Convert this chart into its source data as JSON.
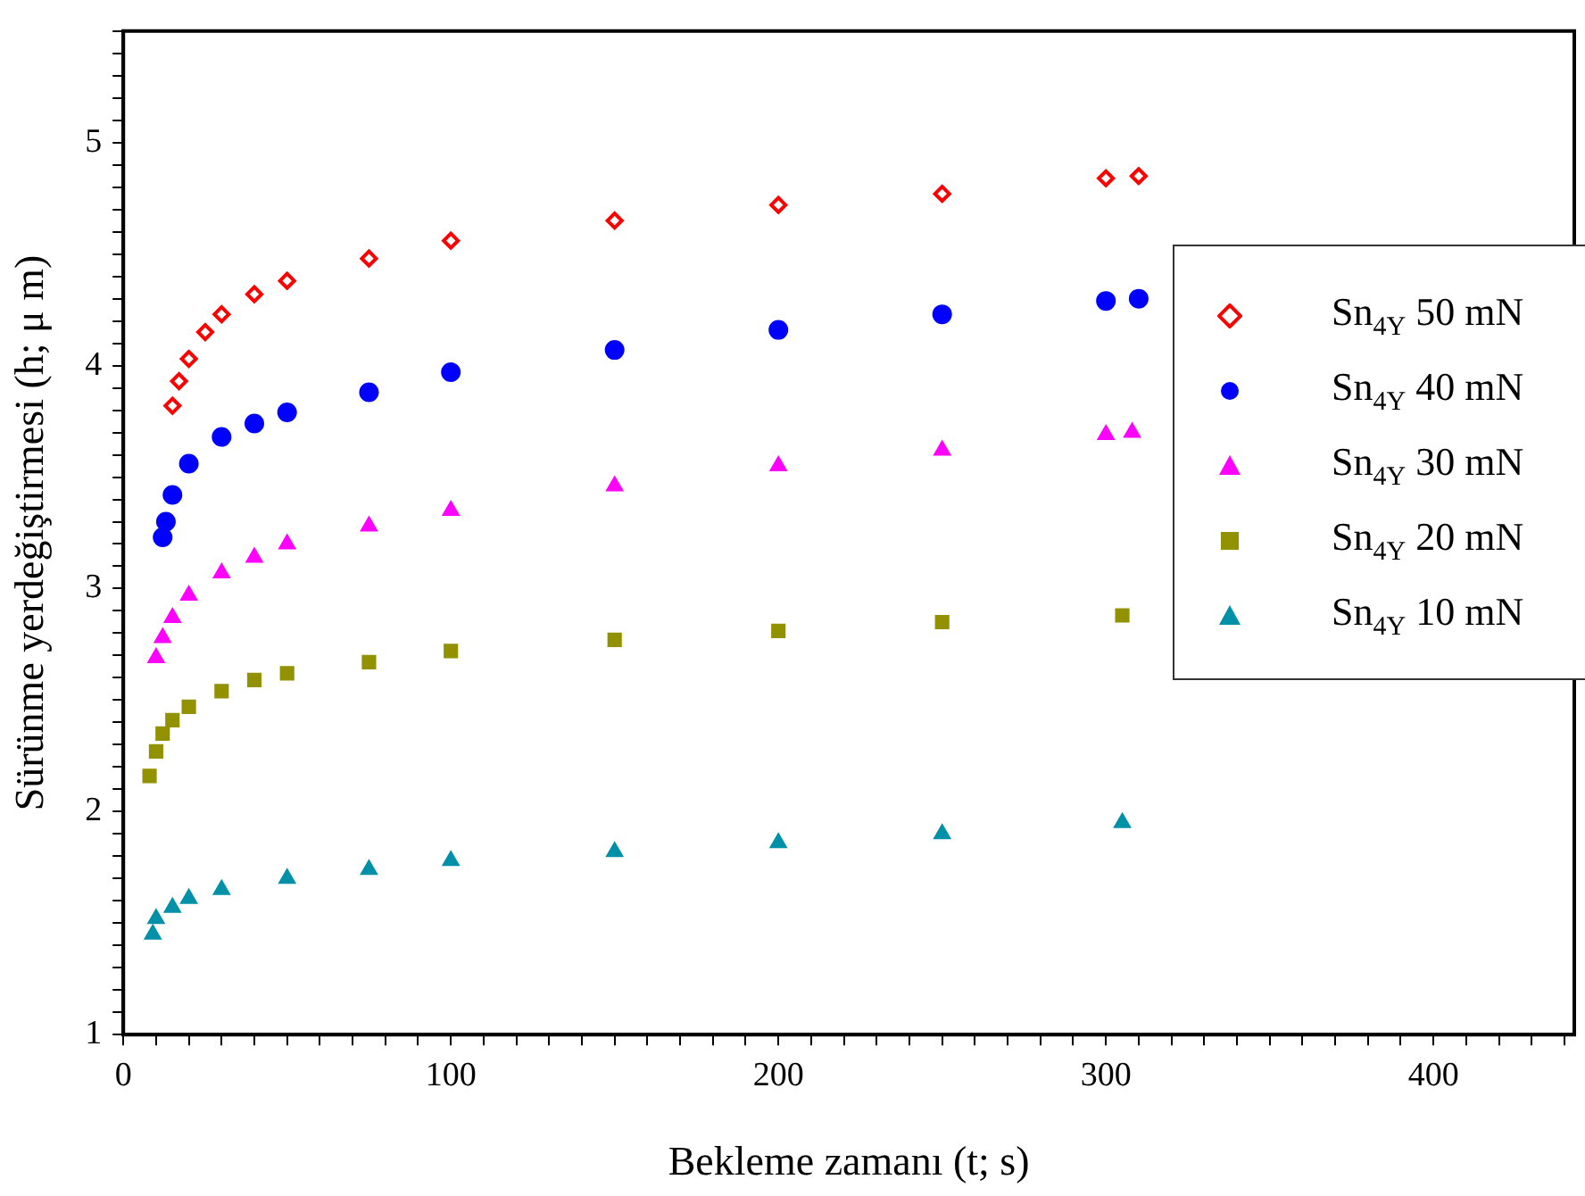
{
  "chart_data": {
    "type": "scatter",
    "xlabel": "Bekleme zamanı (t; s)",
    "ylabel": "Sürünme yerdeğiştirmesi (h; μ m)",
    "legend": "right",
    "grid": false,
    "xlim": [
      0,
      443
    ],
    "ylim": [
      1,
      5.5
    ],
    "xticks": [
      0,
      {
        "value": 10,
        "label": null
      },
      {
        "value": 20,
        "label": null
      },
      {
        "value": 30,
        "label": null
      },
      {
        "value": 40,
        "label": null
      },
      {
        "value": 50,
        "label": null
      },
      {
        "value": 60,
        "label": null
      },
      {
        "value": 70,
        "label": null
      },
      {
        "value": 80,
        "label": null
      },
      {
        "value": 90,
        "label": null
      },
      100,
      {
        "value": 110,
        "label": null
      },
      {
        "value": 120,
        "label": null
      },
      {
        "value": 130,
        "label": null
      },
      {
        "value": 140,
        "label": null
      },
      {
        "value": 150,
        "label": null
      },
      {
        "value": 160,
        "label": null
      },
      {
        "value": 170,
        "label": null
      },
      {
        "value": 180,
        "label": null
      },
      {
        "value": 190,
        "label": null
      },
      200,
      {
        "value": 210,
        "label": null
      },
      {
        "value": 220,
        "label": null
      },
      {
        "value": 230,
        "label": null
      },
      {
        "value": 240,
        "label": null
      },
      {
        "value": 250,
        "label": null
      },
      {
        "value": 260,
        "label": null
      },
      {
        "value": 270,
        "label": null
      },
      {
        "value": 280,
        "label": null
      },
      {
        "value": 290,
        "label": null
      },
      300,
      {
        "value": 310,
        "label": null
      },
      {
        "value": 320,
        "label": null
      },
      {
        "value": 330,
        "label": null
      },
      {
        "value": 340,
        "label": null
      },
      {
        "value": 350,
        "label": null
      },
      {
        "value": 360,
        "label": null
      },
      {
        "value": 370,
        "label": null
      },
      {
        "value": 380,
        "label": null
      },
      {
        "value": 390,
        "label": null
      },
      400,
      {
        "value": 410,
        "label": null
      },
      {
        "value": 420,
        "label": null
      },
      {
        "value": 430,
        "label": null
      },
      {
        "value": 440,
        "label": null
      }
    ],
    "yticks": [
      1,
      {
        "value": 1.1,
        "label": null
      },
      {
        "value": 1.2,
        "label": null
      },
      {
        "value": 1.3,
        "label": null
      },
      {
        "value": 1.4,
        "label": null
      },
      {
        "value": 1.5,
        "label": null
      },
      {
        "value": 1.6,
        "label": null
      },
      {
        "value": 1.7,
        "label": null
      },
      {
        "value": 1.8,
        "label": null
      },
      {
        "value": 1.9,
        "label": null
      },
      2,
      {
        "value": 2.1,
        "label": null
      },
      {
        "value": 2.2,
        "label": null
      },
      {
        "value": 2.3,
        "label": null
      },
      {
        "value": 2.4,
        "label": null
      },
      {
        "value": 2.5,
        "label": null
      },
      {
        "value": 2.6,
        "label": null
      },
      {
        "value": 2.7,
        "label": null
      },
      {
        "value": 2.8,
        "label": null
      },
      {
        "value": 2.9,
        "label": null
      },
      3,
      {
        "value": 3.1,
        "label": null
      },
      {
        "value": 3.2,
        "label": null
      },
      {
        "value": 3.3,
        "label": null
      },
      {
        "value": 3.4,
        "label": null
      },
      {
        "value": 3.5,
        "label": null
      },
      {
        "value": 3.6,
        "label": null
      },
      {
        "value": 3.7,
        "label": null
      },
      {
        "value": 3.8,
        "label": null
      },
      {
        "value": 3.9,
        "label": null
      },
      4,
      {
        "value": 4.1,
        "label": null
      },
      {
        "value": 4.2,
        "label": null
      },
      {
        "value": 4.3,
        "label": null
      },
      {
        "value": 4.4,
        "label": null
      },
      {
        "value": 4.5,
        "label": null
      },
      {
        "value": 4.6,
        "label": null
      },
      {
        "value": 4.7,
        "label": null
      },
      {
        "value": 4.8,
        "label": null
      },
      {
        "value": 4.9,
        "label": null
      },
      5,
      {
        "value": 5.1,
        "label": null
      },
      {
        "value": 5.2,
        "label": null
      },
      {
        "value": 5.3,
        "label": null
      },
      {
        "value": 5.4,
        "label": null
      },
      {
        "value": 5.5,
        "label": null
      }
    ],
    "series": [
      {
        "name": "Sn$_{4Y}$ 50 mN",
        "color": "#ff0000",
        "marker": "diamond",
        "x": [
          15,
          17,
          20,
          25,
          30,
          40,
          50,
          75,
          100,
          150,
          200,
          250,
          300,
          310
        ],
        "values": [
          3.82,
          3.93,
          4.03,
          4.15,
          4.23,
          4.32,
          4.38,
          4.48,
          4.56,
          4.65,
          4.72,
          4.77,
          4.84,
          4.85
        ]
      },
      {
        "name": "Sn$_{4Y}$ 40 mN",
        "color": "#0000ff",
        "marker": "circle",
        "x": [
          12,
          13,
          15,
          20,
          30,
          40,
          50,
          75,
          100,
          150,
          200,
          250,
          300,
          310
        ],
        "values": [
          3.23,
          3.3,
          3.42,
          3.56,
          3.68,
          3.74,
          3.79,
          3.88,
          3.97,
          4.07,
          4.16,
          4.23,
          4.29,
          4.3
        ]
      },
      {
        "name": "Sn$_{4Y}$ 30 mN",
        "color": "#ff00ff",
        "marker": "triangle",
        "x": [
          10,
          12,
          15,
          20,
          30,
          40,
          50,
          75,
          100,
          150,
          200,
          250,
          300,
          308
        ],
        "values": [
          2.69,
          2.78,
          2.87,
          2.97,
          3.07,
          3.14,
          3.2,
          3.28,
          3.35,
          3.46,
          3.55,
          3.62,
          3.69,
          3.7
        ]
      },
      {
        "name": "Sn$_{4Y}$ 20 mN",
        "color": "#929200",
        "marker": "square",
        "x": [
          8,
          10,
          12,
          15,
          20,
          30,
          40,
          50,
          75,
          100,
          150,
          200,
          250,
          305
        ],
        "values": [
          2.16,
          2.27,
          2.35,
          2.41,
          2.47,
          2.54,
          2.59,
          2.62,
          2.67,
          2.72,
          2.77,
          2.81,
          2.85,
          2.88
        ]
      },
      {
        "name": "Sn$_{4Y}$ 10 mN",
        "color": "#0090a8",
        "marker": "triangle",
        "x": [
          9,
          10,
          15,
          20,
          30,
          50,
          75,
          100,
          150,
          200,
          250,
          305
        ],
        "values": [
          1.45,
          1.52,
          1.57,
          1.61,
          1.65,
          1.7,
          1.74,
          1.78,
          1.82,
          1.86,
          1.9,
          1.95
        ]
      }
    ]
  }
}
